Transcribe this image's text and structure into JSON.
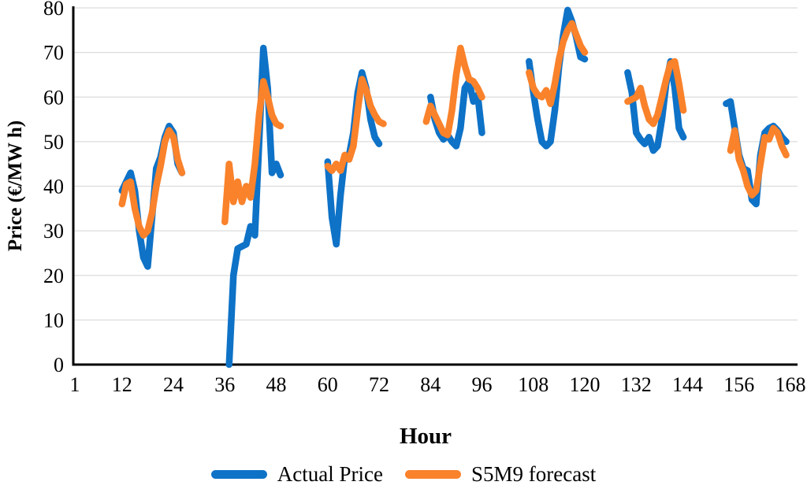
{
  "chart_data": {
    "type": "line",
    "title": "",
    "xlabel": "Hour",
    "ylabel": "Price (€/MW h)",
    "xlim": [
      1,
      168
    ],
    "ylim": [
      0,
      80
    ],
    "x_ticks": [
      1,
      12,
      24,
      36,
      48,
      60,
      72,
      84,
      96,
      108,
      120,
      132,
      144,
      156,
      168
    ],
    "y_ticks": [
      0,
      10,
      20,
      30,
      40,
      50,
      60,
      70,
      80
    ],
    "grid": "horizontal-only",
    "gridline_color": "#DCDCDC",
    "axis_color": "#000000",
    "legend_position": "bottom",
    "series": [
      {
        "name": "Actual Price",
        "color": "#0E72C7",
        "line_width": 8.5,
        "segments": [
          [
            [
              12,
              39
            ],
            [
              13,
              41
            ],
            [
              14,
              43
            ],
            [
              15,
              39
            ],
            [
              16,
              30
            ],
            [
              17,
              24
            ],
            [
              18,
              22
            ],
            [
              19,
              33
            ],
            [
              20,
              44
            ],
            [
              21,
              46.5
            ],
            [
              22,
              51
            ],
            [
              23,
              53.5
            ],
            [
              24,
              52
            ],
            [
              25,
              45
            ],
            [
              26,
              43
            ]
          ],
          [
            [
              37,
              0
            ],
            [
              38,
              20
            ],
            [
              39,
              26
            ],
            [
              40,
              26.5
            ],
            [
              41,
              27
            ],
            [
              42,
              31
            ],
            [
              43,
              29
            ],
            [
              44,
              50
            ],
            [
              45,
              71
            ],
            [
              46,
              62
            ],
            [
              47,
              43
            ],
            [
              48,
              45
            ],
            [
              49,
              42.5
            ]
          ],
          [
            [
              60,
              45.5
            ],
            [
              61,
              33
            ],
            [
              62,
              27
            ],
            [
              63,
              38
            ],
            [
              64,
              46.5
            ],
            [
              65,
              47
            ],
            [
              66,
              52
            ],
            [
              67,
              61
            ],
            [
              68,
              65.5
            ],
            [
              69,
              62
            ],
            [
              70,
              55
            ],
            [
              71,
              51
            ],
            [
              72,
              49.5
            ]
          ],
          [
            [
              84,
              60
            ],
            [
              85,
              55
            ],
            [
              86,
              52
            ],
            [
              87,
              50.5
            ],
            [
              88,
              51.5
            ],
            [
              89,
              50
            ],
            [
              90,
              49
            ],
            [
              91,
              53
            ],
            [
              92,
              62
            ],
            [
              93,
              63.5
            ],
            [
              94,
              59
            ],
            [
              95,
              60.5
            ],
            [
              96,
              52
            ]
          ],
          [
            [
              107,
              68
            ],
            [
              108,
              61
            ],
            [
              109,
              55
            ],
            [
              110,
              50
            ],
            [
              111,
              49
            ],
            [
              112,
              50
            ],
            [
              113,
              57
            ],
            [
              114,
              67
            ],
            [
              115,
              74
            ],
            [
              116,
              79.5
            ],
            [
              117,
              77
            ],
            [
              118,
              73.5
            ],
            [
              119,
              69
            ],
            [
              120,
              68.5
            ]
          ],
          [
            [
              130,
              65.5
            ],
            [
              131,
              61
            ],
            [
              132,
              52
            ],
            [
              133,
              50.5
            ],
            [
              134,
              49.5
            ],
            [
              135,
              51
            ],
            [
              136,
              48
            ],
            [
              137,
              49
            ],
            [
              138,
              55
            ],
            [
              139,
              63
            ],
            [
              140,
              68
            ],
            [
              141,
              62
            ],
            [
              142,
              53
            ],
            [
              143,
              51
            ]
          ],
          [
            [
              153,
              58.5
            ],
            [
              154,
              59
            ],
            [
              155,
              53
            ],
            [
              156,
              47
            ],
            [
              157,
              44
            ],
            [
              158,
              43.5
            ],
            [
              159,
              37
            ],
            [
              160,
              36
            ],
            [
              161,
              47
            ],
            [
              162,
              52
            ],
            [
              163,
              53
            ],
            [
              164,
              53.5
            ],
            [
              165,
              52.5
            ],
            [
              166,
              51
            ],
            [
              167,
              50
            ]
          ]
        ]
      },
      {
        "name": "S5M9 forecast",
        "color": "#F9822B",
        "line_width": 8.5,
        "segments": [
          [
            [
              12,
              36
            ],
            [
              13,
              40.5
            ],
            [
              14,
              41
            ],
            [
              15,
              35
            ],
            [
              16,
              31
            ],
            [
              17,
              29
            ],
            [
              18,
              30
            ],
            [
              19,
              34
            ],
            [
              20,
              40
            ],
            [
              21,
              44.5
            ],
            [
              22,
              50
            ],
            [
              23,
              52.5
            ],
            [
              24,
              51
            ],
            [
              25,
              46
            ],
            [
              26,
              43
            ]
          ],
          [
            [
              36,
              32
            ],
            [
              37,
              45
            ],
            [
              38,
              36.5
            ],
            [
              39,
              41
            ],
            [
              40,
              36.5
            ],
            [
              41,
              40
            ],
            [
              42,
              37.5
            ],
            [
              43,
              45
            ],
            [
              44,
              56
            ],
            [
              45,
              63.5
            ],
            [
              46,
              60
            ],
            [
              47,
              56
            ],
            [
              48,
              54
            ],
            [
              49,
              53.5
            ]
          ],
          [
            [
              60,
              44.5
            ],
            [
              61,
              43.5
            ],
            [
              62,
              45
            ],
            [
              63,
              43.5
            ],
            [
              64,
              47
            ],
            [
              65,
              46
            ],
            [
              66,
              49
            ],
            [
              67,
              57
            ],
            [
              68,
              64
            ],
            [
              69,
              61.5
            ],
            [
              70,
              58
            ],
            [
              71,
              56
            ],
            [
              72,
              54.5
            ],
            [
              73,
              54
            ]
          ],
          [
            [
              83,
              54.5
            ],
            [
              84,
              58
            ],
            [
              85,
              56
            ],
            [
              86,
              54
            ],
            [
              87,
              52
            ],
            [
              88,
              51.5
            ],
            [
              89,
              57
            ],
            [
              90,
              65
            ],
            [
              91,
              71
            ],
            [
              92,
              67
            ],
            [
              93,
              64
            ],
            [
              94,
              63.5
            ],
            [
              95,
              62
            ],
            [
              96,
              60
            ]
          ],
          [
            [
              107,
              65.5
            ],
            [
              108,
              62
            ],
            [
              109,
              60.5
            ],
            [
              110,
              60
            ],
            [
              111,
              61.5
            ],
            [
              112,
              58.5
            ],
            [
              113,
              63
            ],
            [
              114,
              68.5
            ],
            [
              115,
              72.5
            ],
            [
              116,
              75
            ],
            [
              117,
              76.5
            ],
            [
              118,
              74
            ],
            [
              119,
              71.5
            ],
            [
              120,
              70
            ]
          ],
          [
            [
              130,
              59
            ],
            [
              131,
              59.5
            ],
            [
              132,
              60
            ],
            [
              133,
              62
            ],
            [
              134,
              58
            ],
            [
              135,
              55
            ],
            [
              136,
              54
            ],
            [
              137,
              56
            ],
            [
              138,
              60
            ],
            [
              139,
              64
            ],
            [
              140,
              67.5
            ],
            [
              141,
              68
            ],
            [
              142,
              63
            ],
            [
              143,
              57
            ]
          ],
          [
            [
              154,
              48
            ],
            [
              155,
              52.5
            ],
            [
              156,
              46
            ],
            [
              157,
              43.5
            ],
            [
              158,
              40
            ],
            [
              159,
              38
            ],
            [
              160,
              39
            ],
            [
              161,
              45
            ],
            [
              162,
              51
            ],
            [
              163,
              50.5
            ],
            [
              164,
              53
            ],
            [
              165,
              52
            ],
            [
              166,
              49
            ],
            [
              167,
              47
            ]
          ]
        ]
      }
    ]
  }
}
